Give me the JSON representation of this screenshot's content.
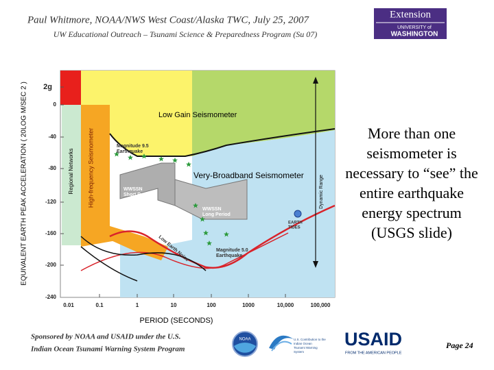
{
  "header": {
    "title": "Paul Whitmore, NOAA/NWS West Coast/Alaska TWC, July 25, 2007",
    "subtitle": "UW Educational Outreach – Tsunami Science & Preparedness Program (Su 07)",
    "logo_top": "Extension",
    "logo_bottom": [
      "UNIVERSITY of",
      "WASHINGTON"
    ]
  },
  "figure": {
    "y_axis_label": "EQUIVALENT EARTH PEAK ACCELERATION ( 20LOG M/SEC 2 )",
    "x_axis_label": "PERIOD (SECONDS)",
    "y_ticks": [
      "2g",
      "0",
      "-40",
      "-80",
      "-120",
      "-160",
      "-200",
      "-240"
    ],
    "x_ticks": [
      "0.01",
      "0.1",
      "1",
      "10",
      "100",
      "1000",
      "10,000",
      "100,000"
    ],
    "regions": {
      "low_gain": "Low Gain Seismometer",
      "very_broadband": "Very-Broadband Seismometer",
      "regional": "Regional Networks",
      "high_frequency": "High-frequency Seismometer",
      "dynamic_range": "Dynamic Range",
      "wwssn_short": [
        "WWSSN",
        "Short Period"
      ],
      "wwssn_long": [
        "WWSSN",
        "Long Period"
      ],
      "mag95": [
        "Magnitude 9.5",
        "Earthquake"
      ],
      "mag50": [
        "Magnitude 5.0",
        "Earthquake"
      ],
      "earth_tides": [
        "EARTH",
        "TIDES"
      ],
      "low_noise": "Low Earth Noise"
    }
  },
  "side_text": "More than one seismometer is necessary to “see” the entire earthquake energy spectrum (USGS slide)",
  "footer": {
    "sponsor": [
      "Sponsored by NOAA and USAID under the U.S.",
      "Indian Ocean Tsunami Warning System Program"
    ],
    "noaa": "NOAA",
    "iotws": [
      "U.S. Contribution to the",
      "Indian Ocean",
      "Tsunami Warning",
      "System"
    ],
    "usaid": "USAID",
    "usaid_sub": "FROM THE AMERICAN PEOPLE",
    "page": "Page 24"
  }
}
